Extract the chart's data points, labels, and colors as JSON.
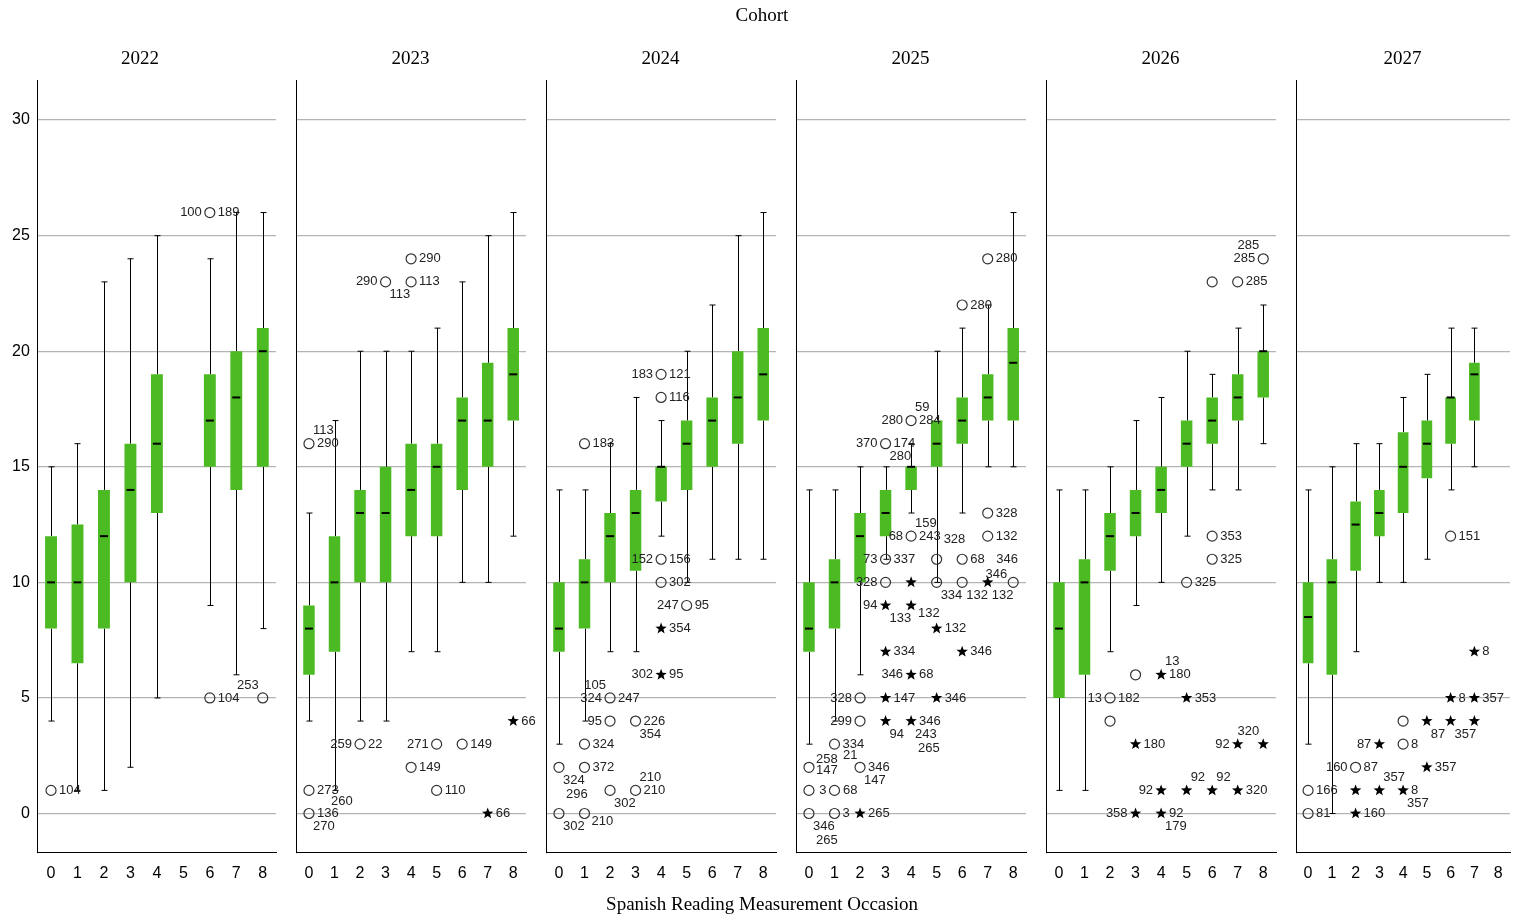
{
  "chart_data": [
    {
      "type": "box",
      "title": "2022",
      "categories": [
        "0",
        "1",
        "2",
        "3",
        "4",
        "5",
        "6",
        "7",
        "8"
      ],
      "ylim": [
        -1.7,
        31.7
      ],
      "yticks": [
        0,
        5,
        10,
        15,
        20,
        25,
        30
      ],
      "grid": "y",
      "series": [
        {
          "color": "#4cbb23",
          "boxes": [
            {
              "low": 4,
              "q1": 8,
              "median": 10,
              "q3": 12,
              "high": 15
            },
            {
              "low": 1,
              "q1": 6.5,
              "median": 10,
              "q3": 12.5,
              "high": 16
            },
            {
              "low": 1,
              "q1": 8,
              "median": 12,
              "q3": 14,
              "high": 23
            },
            {
              "low": 2,
              "q1": 10,
              "median": 14,
              "q3": 16,
              "high": 24
            },
            {
              "low": 5,
              "q1": 13,
              "median": 16,
              "q3": 19,
              "high": 25
            },
            null,
            {
              "low": 9,
              "q1": 15,
              "median": 17,
              "q3": 19,
              "high": 24
            },
            {
              "low": 6,
              "q1": 14,
              "median": 18,
              "q3": 20,
              "high": 26
            },
            {
              "low": 8,
              "q1": 15,
              "median": 20,
              "q3": 21,
              "high": 26
            }
          ]
        },
        {
          "type": "scatter",
          "marker": "circle",
          "color": "#333333",
          "x": [
            "0",
            "6",
            "6",
            "8"
          ],
          "values": [
            1,
            26,
            5,
            5
          ]
        }
      ],
      "annotations": [
        {
          "text": "104",
          "x": "0",
          "y": 1
        },
        {
          "text": "189",
          "x": "6",
          "y": 26
        },
        {
          "text": "100",
          "x": "6",
          "y": 26
        },
        {
          "text": "104",
          "x": "6",
          "y": 5
        },
        {
          "text": "253",
          "x": "8",
          "y": 5
        }
      ]
    },
    {
      "type": "box",
      "title": "2023",
      "categories": [
        "0",
        "1",
        "2",
        "3",
        "4",
        "5",
        "6",
        "7",
        "8"
      ],
      "ylim": [
        -1.7,
        31.7
      ],
      "yticks": [
        0,
        5,
        10,
        15,
        20,
        25,
        30
      ],
      "grid": "y",
      "tick_labels": "x",
      "series": [
        {
          "color": "#4cbb23",
          "boxes": [
            {
              "low": 4,
              "q1": 6,
              "median": 8,
              "q3": 9,
              "high": 13
            },
            {
              "low": 1,
              "q1": 7,
              "median": 10,
              "q3": 12,
              "high": 17
            },
            {
              "low": 4,
              "q1": 10,
              "median": 13,
              "q3": 14,
              "high": 20
            },
            {
              "low": 4,
              "q1": 10,
              "median": 13,
              "q3": 15,
              "high": 20
            },
            {
              "low": 7,
              "q1": 12,
              "median": 14,
              "q3": 16,
              "high": 20
            },
            {
              "low": 7,
              "q1": 12,
              "median": 15,
              "q3": 16,
              "high": 21
            },
            {
              "low": 10,
              "q1": 14,
              "median": 17,
              "q3": 18,
              "high": 23
            },
            {
              "low": 10,
              "q1": 15,
              "median": 17,
              "q3": 19.5,
              "high": 25
            },
            {
              "low": 12,
              "q1": 17,
              "median": 19,
              "q3": 21,
              "high": 26
            }
          ]
        },
        {
          "type": "scatter",
          "marker": "circle",
          "color": "#333333",
          "x": [
            "0",
            "0",
            "0",
            "2",
            "3",
            "4",
            "4",
            "4",
            "5",
            "5",
            "6"
          ],
          "values": [
            16,
            1,
            0,
            3,
            23,
            24,
            23,
            2,
            3,
            1,
            3
          ]
        },
        {
          "type": "scatter",
          "marker": "star",
          "color": "#000000",
          "x": [
            "7",
            "8"
          ],
          "values": [
            0,
            4
          ]
        }
      ],
      "annotations": [
        {
          "text": "290",
          "x": "0",
          "y": 16
        },
        {
          "text": "113",
          "x": "0",
          "y": 16
        },
        {
          "text": "290",
          "x": "3",
          "y": 23
        },
        {
          "text": "113",
          "x": "3",
          "y": 23
        },
        {
          "text": "290",
          "x": "4",
          "y": 24
        },
        {
          "text": "113",
          "x": "4",
          "y": 23
        },
        {
          "text": "149",
          "x": "4",
          "y": 2
        },
        {
          "text": "22",
          "x": "2",
          "y": 3
        },
        {
          "text": "259",
          "x": "2",
          "y": 3
        },
        {
          "text": "271",
          "x": "5",
          "y": 3
        },
        {
          "text": "110",
          "x": "5",
          "y": 1
        },
        {
          "text": "149",
          "x": "6",
          "y": 3
        },
        {
          "text": "273",
          "x": "0",
          "y": 1
        },
        {
          "text": "136",
          "x": "0",
          "y": 0
        },
        {
          "text": "270",
          "x": "0",
          "y": 0
        },
        {
          "text": "260",
          "x": "0",
          "y": 0
        },
        {
          "text": "66",
          "x": "8",
          "y": 4
        },
        {
          "text": "66",
          "x": "7",
          "y": 0
        }
      ]
    },
    {
      "type": "box",
      "title": "2024",
      "xlabel": "Spanish Reading Measurement Occasion",
      "categories": [
        "0",
        "1",
        "2",
        "3",
        "4",
        "5",
        "6",
        "7",
        "8"
      ],
      "ylim": [
        -1.7,
        31.7
      ],
      "yticks": [
        0,
        5,
        10,
        15,
        20,
        25,
        30
      ],
      "grid": "y",
      "tick_labels": "x",
      "series": [
        {
          "color": "#4cbb23",
          "boxes": [
            {
              "low": 3,
              "q1": 7,
              "median": 8,
              "q3": 10,
              "high": 14
            },
            {
              "low": 4,
              "q1": 8,
              "median": 10,
              "q3": 11,
              "high": 14
            },
            {
              "low": 7,
              "q1": 10,
              "median": 12,
              "q3": 13,
              "high": 16
            },
            {
              "low": 7,
              "q1": 10.5,
              "median": 13,
              "q3": 14,
              "high": 18
            },
            {
              "low": 12,
              "q1": 13.5,
              "median": 15,
              "q3": 15,
              "high": 17
            },
            {
              "low": 10,
              "q1": 14,
              "median": 16,
              "q3": 17,
              "high": 20
            },
            {
              "low": 11,
              "q1": 15,
              "median": 17,
              "q3": 18,
              "high": 22
            },
            {
              "low": 11,
              "q1": 16,
              "median": 18,
              "q3": 20,
              "high": 25
            },
            {
              "low": 11,
              "q1": 17,
              "median": 19,
              "q3": 21,
              "high": 26
            }
          ]
        },
        {
          "type": "scatter",
          "marker": "circle",
          "color": "#333333",
          "x": [
            "0",
            "0",
            "1",
            "1",
            "1",
            "1",
            "2",
            "2",
            "2",
            "3",
            "3",
            "4",
            "4",
            "4",
            "4",
            "5"
          ],
          "values": [
            2,
            0,
            16,
            3,
            2,
            0,
            5,
            4,
            1,
            4,
            1,
            19,
            18,
            11,
            10,
            9
          ]
        },
        {
          "type": "scatter",
          "marker": "star",
          "color": "#000000",
          "x": [
            "4",
            "4"
          ],
          "values": [
            8,
            6
          ]
        }
      ],
      "annotations": [
        "Cohort",
        {
          "text": "121",
          "x": "4",
          "y": 19
        },
        {
          "text": "183",
          "x": "4",
          "y": 19
        },
        {
          "text": "116",
          "x": "4",
          "y": 18
        },
        {
          "text": "183",
          "x": "1",
          "y": 16
        },
        {
          "text": "156",
          "x": "4",
          "y": 11
        },
        {
          "text": "152",
          "x": "4",
          "y": 11
        },
        {
          "text": "302",
          "x": "4",
          "y": 10
        },
        {
          "text": "95",
          "x": "5",
          "y": 9
        },
        {
          "text": "247",
          "x": "5",
          "y": 9
        },
        {
          "text": "354",
          "x": "4",
          "y": 8
        },
        {
          "text": "95",
          "x": "4",
          "y": 6
        },
        {
          "text": "302",
          "x": "4",
          "y": 6
        },
        {
          "text": "247",
          "x": "2",
          "y": 5
        },
        {
          "text": "324",
          "x": "2",
          "y": 5
        },
        {
          "text": "105",
          "x": "2",
          "y": 5
        },
        {
          "text": "226",
          "x": "3",
          "y": 4
        },
        {
          "text": "95",
          "x": "2",
          "y": 4
        },
        {
          "text": "354",
          "x": "3",
          "y": 4
        },
        {
          "text": "324",
          "x": "0",
          "y": 2
        },
        {
          "text": "324",
          "x": "1",
          "y": 3
        },
        {
          "text": "296",
          "x": "0",
          "y": 2
        },
        {
          "text": "372",
          "x": "1",
          "y": 2
        },
        {
          "text": "210",
          "x": "3",
          "y": 1
        },
        {
          "text": "302",
          "x": "2",
          "y": 1
        },
        {
          "text": "210",
          "x": "3",
          "y": 1
        },
        {
          "text": "302",
          "x": "0",
          "y": 0
        },
        {
          "text": "210",
          "x": "1",
          "y": 0
        }
      ]
    },
    {
      "type": "box",
      "title": "2025",
      "categories": [
        "0",
        "1",
        "2",
        "3",
        "4",
        "5",
        "6",
        "7",
        "8"
      ],
      "ylim": [
        -1.7,
        31.7
      ],
      "yticks": [
        0,
        5,
        10,
        15,
        20,
        25,
        30
      ],
      "grid": "y",
      "tick_labels": "x",
      "series": [
        {
          "color": "#4cbb23",
          "boxes": [
            {
              "low": 3,
              "q1": 7,
              "median": 8,
              "q3": 10,
              "high": 14
            },
            {
              "low": 4,
              "q1": 8,
              "median": 10,
              "q3": 11,
              "high": 14
            },
            {
              "low": 6,
              "q1": 10,
              "median": 12,
              "q3": 13,
              "high": 15
            },
            {
              "low": 11,
              "q1": 12,
              "median": 13,
              "q3": 14,
              "high": 15
            },
            {
              "low": 13,
              "q1": 14,
              "median": 15,
              "q3": 15,
              "high": 16
            },
            {
              "low": 10,
              "q1": 15,
              "median": 16,
              "q3": 17,
              "high": 20
            },
            {
              "low": 13,
              "q1": 16,
              "median": 17,
              "q3": 18,
              "high": 21
            },
            {
              "low": 15,
              "q1": 17,
              "median": 18,
              "q3": 19,
              "high": 22
            },
            {
              "low": 15,
              "q1": 17,
              "median": 19.5,
              "q3": 21,
              "high": 26
            }
          ]
        },
        {
          "type": "scatter",
          "marker": "circle",
          "color": "#333333",
          "x": [
            "0",
            "0",
            "0",
            "1",
            "1",
            "1",
            "2",
            "2",
            "2",
            "3",
            "3",
            "3",
            "4",
            "4",
            "5",
            "5",
            "6",
            "6",
            "6",
            "7",
            "7",
            "7",
            "8"
          ],
          "values": [
            2,
            1,
            0,
            3,
            1,
            0,
            5,
            4,
            2,
            16,
            11,
            10,
            17,
            12,
            11,
            10,
            22,
            11,
            10,
            24,
            13,
            12,
            10
          ]
        },
        {
          "type": "scatter",
          "marker": "star",
          "color": "#000000",
          "x": [
            "2",
            "3",
            "3",
            "3",
            "3",
            "4",
            "4",
            "4",
            "4",
            "5",
            "5",
            "6",
            "7"
          ],
          "values": [
            0,
            9,
            7,
            5,
            4,
            10,
            9,
            6,
            4,
            8,
            5,
            7,
            10
          ]
        }
      ],
      "annotations": [
        {
          "text": "280",
          "x": "7",
          "y": 24
        },
        {
          "text": "280",
          "x": "6",
          "y": 22
        },
        {
          "text": "284",
          "x": "4",
          "y": 17
        },
        {
          "text": "280",
          "x": "4",
          "y": 17
        },
        {
          "text": "59",
          "x": "4",
          "y": 17
        },
        {
          "text": "174",
          "x": "3",
          "y": 16
        },
        {
          "text": "370",
          "x": "3",
          "y": 16
        },
        {
          "text": "280",
          "x": "3",
          "y": 16
        },
        {
          "text": "243",
          "x": "4",
          "y": 12
        },
        {
          "text": "68",
          "x": "4",
          "y": 12
        },
        {
          "text": "159",
          "x": "4",
          "y": 12
        },
        {
          "text": "328",
          "x": "7",
          "y": 13
        },
        {
          "text": "132",
          "x": "7",
          "y": 12
        },
        {
          "text": "68",
          "x": "6",
          "y": 11
        },
        {
          "text": "346",
          "x": "6",
          "y": 11
        },
        {
          "text": "337",
          "x": "3",
          "y": 11
        },
        {
          "text": "73",
          "x": "3",
          "y": 11
        },
        {
          "text": "328",
          "x": "3",
          "y": 10
        },
        {
          "text": "328",
          "x": "5",
          "y": 11
        },
        {
          "text": "334",
          "x": "5",
          "y": 10
        },
        {
          "text": "132",
          "x": "6",
          "y": 10
        },
        {
          "text": "132",
          "x": "7",
          "y": 10
        },
        {
          "text": "346",
          "x": "8",
          "y": 10
        },
        {
          "text": "94",
          "x": "3",
          "y": 9
        },
        {
          "text": "133",
          "x": "3",
          "y": 9
        },
        {
          "text": "132",
          "x": "4",
          "y": 9
        },
        {
          "text": "346",
          "x": "6",
          "y": 7
        },
        {
          "text": "334",
          "x": "3",
          "y": 7
        },
        {
          "text": "132",
          "x": "5",
          "y": 8
        },
        {
          "text": "68",
          "x": "4",
          "y": 6
        },
        {
          "text": "346",
          "x": "4",
          "y": 6
        },
        {
          "text": "147",
          "x": "3",
          "y": 5
        },
        {
          "text": "346",
          "x": "5",
          "y": 5
        },
        {
          "text": "328",
          "x": "2",
          "y": 5
        },
        {
          "text": "147",
          "x": "0",
          "y": 1
        },
        {
          "text": "68",
          "x": "0",
          "y": 1
        },
        {
          "text": "94",
          "x": "3",
          "y": 4
        },
        {
          "text": "334",
          "x": "1",
          "y": 3
        },
        {
          "text": "299",
          "x": "2",
          "y": 4
        },
        {
          "text": "346",
          "x": "4",
          "y": 4
        },
        {
          "text": "243",
          "x": "4",
          "y": 4
        },
        {
          "text": "265",
          "x": "4",
          "y": 4
        },
        {
          "text": "258",
          "x": "0",
          "y": 2
        },
        {
          "text": "21",
          "x": "0",
          "y": 2
        },
        {
          "text": "346",
          "x": "2",
          "y": 2
        },
        {
          "text": "147",
          "x": "2",
          "y": 2
        },
        {
          "text": "3",
          "x": "1",
          "y": 1
        },
        {
          "text": "346",
          "x": "0",
          "y": 0
        },
        {
          "text": "265",
          "x": "0",
          "y": 0
        },
        {
          "text": "3",
          "x": "1",
          "y": 0
        },
        {
          "text": "265",
          "x": "2",
          "y": 0
        }
      ]
    },
    {
      "type": "box",
      "title": "2026",
      "categories": [
        "0",
        "1",
        "2",
        "3",
        "4",
        "5",
        "6",
        "7",
        "8"
      ],
      "ylim": [
        -1.7,
        31.7
      ],
      "yticks": [
        0,
        5,
        10,
        15,
        20,
        25,
        30
      ],
      "grid": "y",
      "tick_labels": "x",
      "series": [
        {
          "color": "#4cbb23",
          "boxes": [
            {
              "low": 1,
              "q1": 5,
              "median": 8,
              "q3": 10,
              "high": 14
            },
            {
              "low": 1,
              "q1": 6,
              "median": 10,
              "q3": 11,
              "high": 14
            },
            {
              "low": 7,
              "q1": 10.5,
              "median": 12,
              "q3": 13,
              "high": 15
            },
            {
              "low": 9,
              "q1": 12,
              "median": 13,
              "q3": 14,
              "high": 17
            },
            {
              "low": 10,
              "q1": 13,
              "median": 14,
              "q3": 15,
              "high": 18
            },
            {
              "low": 12,
              "q1": 15,
              "median": 16,
              "q3": 17,
              "high": 20
            },
            {
              "low": 14,
              "q1": 16,
              "median": 17,
              "q3": 18,
              "high": 19
            },
            {
              "low": 14,
              "q1": 17,
              "median": 18,
              "q3": 19,
              "high": 21
            },
            {
              "low": 16,
              "q1": 18,
              "median": 20,
              "q3": 20,
              "high": 22
            }
          ]
        },
        {
          "type": "scatter",
          "marker": "circle",
          "color": "#333333",
          "x": [
            "2",
            "2",
            "3",
            "5",
            "6",
            "6",
            "6",
            "7",
            "8"
          ],
          "values": [
            5,
            4,
            6,
            10,
            23,
            12,
            11,
            23,
            24
          ]
        },
        {
          "type": "scatter",
          "marker": "star",
          "color": "#000000",
          "x": [
            "3",
            "3",
            "4",
            "4",
            "4",
            "5",
            "5",
            "6",
            "7",
            "7",
            "8"
          ],
          "values": [
            3,
            0,
            6,
            1,
            0,
            5,
            1,
            1,
            3,
            1,
            3
          ]
        }
      ],
      "annotations": [
        {
          "text": "285",
          "x": "8",
          "y": 24
        },
        {
          "text": "285",
          "x": "8",
          "y": 24
        },
        {
          "text": "285",
          "x": "7",
          "y": 23
        },
        {
          "text": "353",
          "x": "6",
          "y": 12
        },
        {
          "text": "325",
          "x": "6",
          "y": 11
        },
        {
          "text": "325",
          "x": "5",
          "y": 10
        },
        {
          "text": "180",
          "x": "4",
          "y": 6
        },
        {
          "text": "13",
          "x": "4",
          "y": 6
        },
        {
          "text": "182",
          "x": "2",
          "y": 5
        },
        {
          "text": "13",
          "x": "2",
          "y": 5
        },
        {
          "text": "353",
          "x": "5",
          "y": 5
        },
        {
          "text": "180",
          "x": "3",
          "y": 3
        },
        {
          "text": "92",
          "x": "7",
          "y": 3
        },
        {
          "text": "320",
          "x": "8",
          "y": 3
        },
        {
          "text": "92",
          "x": "4",
          "y": 1
        },
        {
          "text": "92",
          "x": "5",
          "y": 1
        },
        {
          "text": "92",
          "x": "6",
          "y": 1
        },
        {
          "text": "320",
          "x": "7",
          "y": 1
        },
        {
          "text": "358",
          "x": "3",
          "y": 0
        },
        {
          "text": "92",
          "x": "4",
          "y": 0
        },
        {
          "text": "179",
          "x": "4",
          "y": 0
        }
      ]
    },
    {
      "type": "box",
      "title": "2027",
      "categories": [
        "0",
        "1",
        "2",
        "3",
        "4",
        "5",
        "6",
        "7",
        "8"
      ],
      "ylim": [
        -1.7,
        31.7
      ],
      "yticks": [
        0,
        5,
        10,
        15,
        20,
        25,
        30
      ],
      "grid": "y",
      "tick_labels": "x",
      "series": [
        {
          "color": "#4cbb23",
          "boxes": [
            {
              "low": 3,
              "q1": 6.5,
              "median": 8.5,
              "q3": 10,
              "high": 14
            },
            {
              "low": 0,
              "q1": 6,
              "median": 10,
              "q3": 11,
              "high": 15
            },
            {
              "low": 7,
              "q1": 10.5,
              "median": 12.5,
              "q3": 13.5,
              "high": 16
            },
            {
              "low": 10,
              "q1": 12,
              "median": 13,
              "q3": 14,
              "high": 16
            },
            {
              "low": 10,
              "q1": 13,
              "median": 15,
              "q3": 16.5,
              "high": 18
            },
            {
              "low": 11,
              "q1": 14.5,
              "median": 16,
              "q3": 17,
              "high": 19
            },
            {
              "low": 14,
              "q1": 16,
              "median": 18,
              "q3": 18,
              "high": 21
            },
            {
              "low": 15,
              "q1": 17,
              "median": 19,
              "q3": 19.5,
              "high": 21
            },
            null
          ]
        },
        {
          "type": "scatter",
          "marker": "circle",
          "color": "#333333",
          "x": [
            "0",
            "0",
            "2",
            "4",
            "4",
            "6"
          ],
          "values": [
            1,
            0,
            2,
            4,
            3,
            12
          ]
        },
        {
          "type": "scatter",
          "marker": "star",
          "color": "#000000",
          "x": [
            "2",
            "2",
            "3",
            "3",
            "4",
            "5",
            "5",
            "6",
            "6",
            "7",
            "7",
            "7"
          ],
          "values": [
            1,
            0,
            3,
            1,
            1,
            4,
            2,
            5,
            4,
            7,
            5,
            4
          ]
        }
      ],
      "annotations": [
        {
          "text": "151",
          "x": "6",
          "y": 12
        },
        {
          "text": "8",
          "x": "7",
          "y": 7
        },
        {
          "text": "8",
          "x": "6",
          "y": 5
        },
        {
          "text": "357",
          "x": "7",
          "y": 5
        },
        {
          "text": "87",
          "x": "5",
          "y": 4
        },
        {
          "text": "357",
          "x": "6",
          "y": 4
        },
        {
          "text": "87",
          "x": "3",
          "y": 3
        },
        {
          "text": "8",
          "x": "4",
          "y": 3
        },
        {
          "text": "87",
          "x": "2",
          "y": 2
        },
        {
          "text": "160",
          "x": "2",
          "y": 2
        },
        {
          "text": "357",
          "x": "5",
          "y": 2
        },
        {
          "text": "8",
          "x": "4",
          "y": 1
        },
        {
          "text": "357",
          "x": "4",
          "y": 1
        },
        {
          "text": "166",
          "x": "0",
          "y": 1
        },
        {
          "text": "81",
          "x": "0",
          "y": 0
        },
        {
          "text": "160",
          "x": "2",
          "y": 0
        },
        {
          "text": "357",
          "x": "3",
          "y": 1
        }
      ]
    }
  ]
}
